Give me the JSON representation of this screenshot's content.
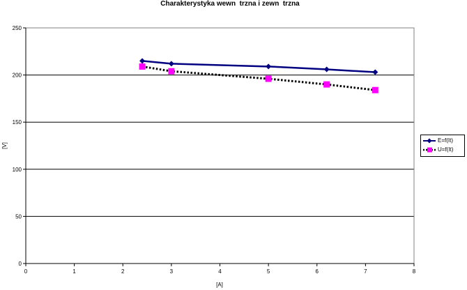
{
  "chart_data": {
    "type": "line",
    "title": "Charakterystyka wewn  trzna i zewn  trzna",
    "xlabel": "[A]",
    "ylabel": "[V]",
    "xlim": [
      0,
      8
    ],
    "ylim": [
      0,
      250
    ],
    "xticks": [
      0,
      1,
      2,
      3,
      4,
      5,
      6,
      7,
      8
    ],
    "yticks": [
      0,
      50,
      100,
      150,
      200,
      250
    ],
    "grid": "horizontal",
    "legend_position": "right",
    "series": [
      {
        "name": "E=f(It)",
        "style": "solid-line-diamond",
        "color": "#000080",
        "x": [
          2.4,
          3.0,
          5.0,
          6.2,
          7.2
        ],
        "y": [
          215,
          212,
          209,
          206,
          203
        ]
      },
      {
        "name": "U=f(It)",
        "style": "dotted-line-square",
        "color": "#000000",
        "marker_color": "#FF00FF",
        "x": [
          2.4,
          3.0,
          5.0,
          6.2,
          7.2
        ],
        "y": [
          209,
          204,
          196,
          190,
          184
        ]
      }
    ]
  }
}
